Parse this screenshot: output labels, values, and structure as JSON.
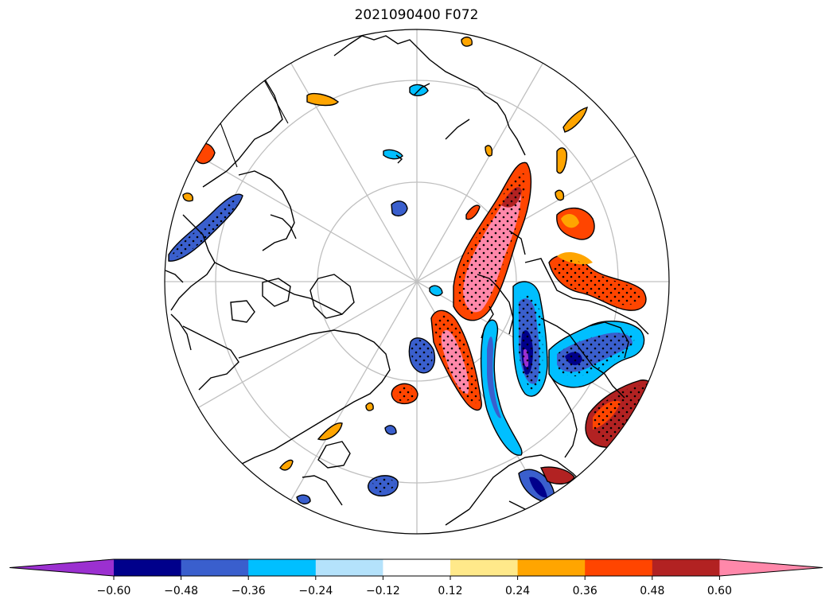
{
  "title": "2021090400 F072",
  "projection": "north-polar-stereographic",
  "graticule": {
    "meridian_spacing_deg": 30,
    "latitude_circles_deg": [
      80,
      70,
      60
    ]
  },
  "colorbar": {
    "extend": "both",
    "levels": [
      -0.6,
      -0.48,
      -0.36,
      -0.24,
      -0.12,
      0.12,
      0.24,
      0.36,
      0.48,
      0.6
    ],
    "tick_labels": [
      "−0.60",
      "−0.48",
      "−0.36",
      "−0.24",
      "−0.12",
      "0.12",
      "0.24",
      "0.36",
      "0.48",
      "0.60"
    ],
    "colors": [
      "#9b30d0",
      "#00008b",
      "#3a5fcd",
      "#00bfff",
      "#b4e2fb",
      "#ffffff",
      "#ffe98a",
      "#ffa500",
      "#ff4500",
      "#b22222",
      "#ff88aa"
    ]
  },
  "stipple_meaning_visible": false
}
